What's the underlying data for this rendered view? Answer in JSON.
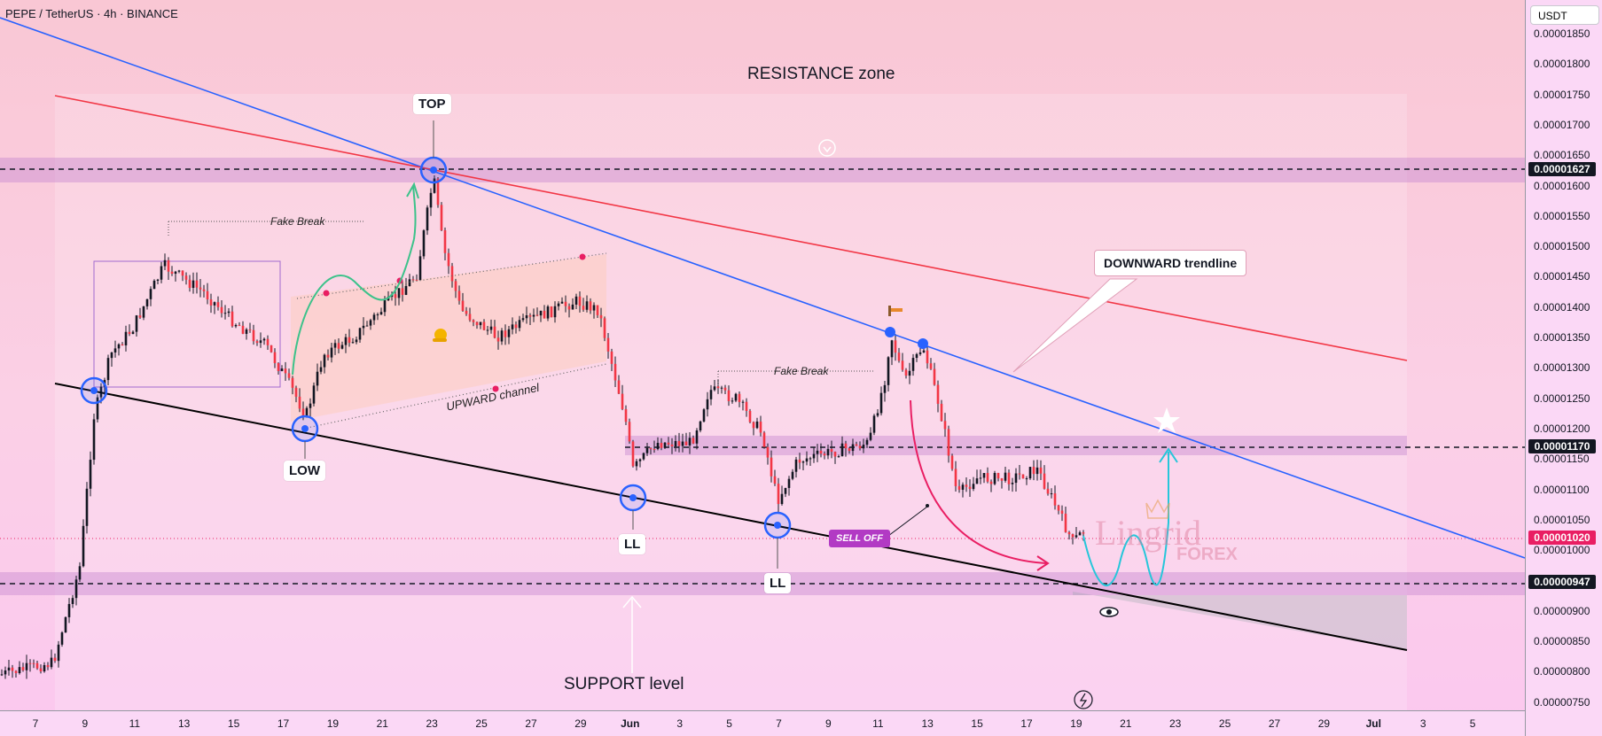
{
  "header": {
    "title": "PEPE / TetherUS · 4h · BINANCE"
  },
  "price_axis": {
    "unit": "USDT",
    "ticks": [
      "0.00001850",
      "0.00001800",
      "0.00001750",
      "0.00001700",
      "0.00001650",
      "0.00001600",
      "0.00001550",
      "0.00001500",
      "0.00001450",
      "0.00001400",
      "0.00001350",
      "0.00001300",
      "0.00001250",
      "0.00001200",
      "0.00001150",
      "0.00001100",
      "0.00001050",
      "0.00001000",
      "0.00000950",
      "0.00000900",
      "0.00000850",
      "0.00000800",
      "0.00000750"
    ],
    "tags": [
      {
        "value": "0.00001627",
        "color": "#131722"
      },
      {
        "value": "0.00001170",
        "color": "#131722"
      },
      {
        "value": "0.00001020",
        "color": "#e91e63"
      },
      {
        "value": "0.00000947",
        "color": "#131722"
      }
    ]
  },
  "time_axis": {
    "ticks": [
      "7",
      "9",
      "11",
      "13",
      "15",
      "17",
      "19",
      "21",
      "23",
      "25",
      "27",
      "29",
      "Jun",
      "3",
      "5",
      "7",
      "9",
      "11",
      "13",
      "15",
      "17",
      "19",
      "21",
      "23",
      "25",
      "27",
      "29",
      "Jul",
      "3",
      "5"
    ]
  },
  "annotations": {
    "resistance": "RESISTANCE zone",
    "support": "SUPPORT level",
    "top": "TOP",
    "low": "LOW",
    "ll1": "LL",
    "ll2": "LL",
    "fake_break_1": "Fake Break",
    "fake_break_2": "Fake Break",
    "upward_channel": "UPWARD channel",
    "downward_trendline": "DOWNWARD trendline",
    "sell_off": "SELL OFF"
  },
  "watermark": {
    "line1": "Lingrid",
    "line2": "FOREX"
  },
  "colors": {
    "bull": "#089981",
    "bear": "#f23645",
    "candle": "#131722",
    "blue_trendline": "#2962ff",
    "red_trendline": "#f23645",
    "support_line": "#000000",
    "zone": "#c78ad0",
    "accent_pink": "#e91e63",
    "accent_cyan": "#26c6da",
    "accent_green": "#3cc28a"
  },
  "chart_data": {
    "type": "candlestick",
    "symbol": "PEPE / TetherUS",
    "interval": "4h",
    "exchange": "BINANCE",
    "ylim": [
      7.4e-06,
      1.87e-05
    ],
    "levels": [
      1.627e-05,
      1.17e-05,
      9.47e-06
    ],
    "last_price": 1.02e-05,
    "swing_points": [
      {
        "x": "9",
        "close": 1.265e-05
      },
      {
        "x": "17",
        "close": 1.215e-05,
        "label": "LOW"
      },
      {
        "x": "23",
        "close": 1.62e-05,
        "label": "TOP"
      },
      {
        "x": "May 31",
        "close": 1.09e-05,
        "label": "LL"
      },
      {
        "x": "Jun 6",
        "close": 1.04e-05,
        "label": "LL"
      },
      {
        "x": "Jun 11",
        "close": 1.35e-05
      },
      {
        "x": "Jun 12",
        "close": 1.34e-05
      }
    ]
  }
}
